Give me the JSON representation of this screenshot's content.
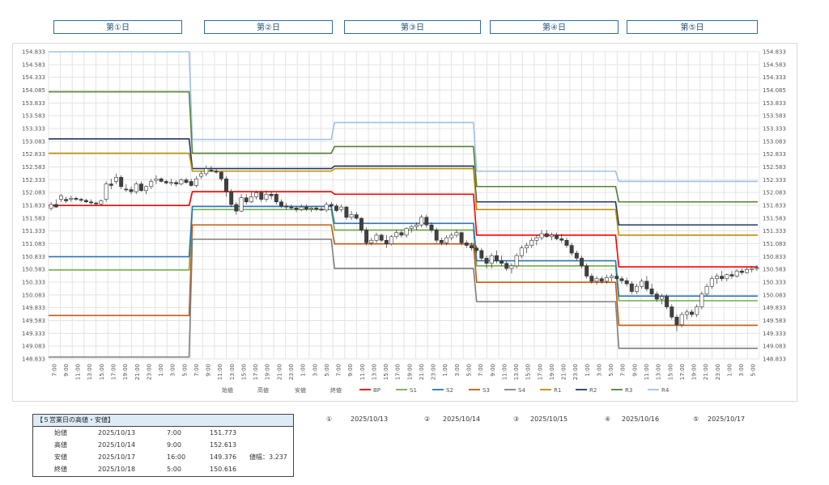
{
  "days": [
    "第①日",
    "第②日",
    "第③日",
    "第④日",
    "第⑤日"
  ],
  "summary": {
    "title": "【５営業日の高値・安値】",
    "rows": [
      {
        "label": "始値",
        "date": "2025/10/13",
        "time": "7:00",
        "price": "151.773",
        "note": ""
      },
      {
        "label": "高値",
        "date": "2025/10/14",
        "time": "9:00",
        "price": "152.613",
        "note": ""
      },
      {
        "label": "安値",
        "date": "2025/10/17",
        "time": "16:00",
        "price": "149.376",
        "note": "値幅：3.237"
      },
      {
        "label": "終値",
        "date": "2025/10/18",
        "time": "5:00",
        "price": "150.616",
        "note": ""
      }
    ]
  },
  "dates": [
    {
      "num": "①",
      "date": "2025/10/13"
    },
    {
      "num": "②",
      "date": "2025/10/14"
    },
    {
      "num": "③",
      "date": "2025/10/15"
    },
    {
      "num": "④",
      "date": "2025/10/16"
    },
    {
      "num": "⑤",
      "date": "2025/10/17"
    }
  ],
  "chart_data": {
    "type": "candlestick",
    "ylim": [
      148.833,
      154.833
    ],
    "y_ticks": [
      "154.833",
      "154.583",
      "154.333",
      "154.085",
      "153.833",
      "153.583",
      "153.333",
      "153.083",
      "152.833",
      "152.583",
      "152.333",
      "152.083",
      "151.833",
      "151.583",
      "151.333",
      "151.083",
      "150.833",
      "150.583",
      "150.333",
      "150.083",
      "149.833",
      "149.583",
      "149.333",
      "149.083",
      "148.833"
    ],
    "x_labels": [
      "7:00",
      "9:00",
      "11:00",
      "13:00",
      "15:00",
      "17:00",
      "19:00",
      "21:00",
      "23:00",
      "1:00",
      "3:00",
      "5:00",
      "7:00",
      "9:00",
      "11:00",
      "13:00",
      "15:00",
      "17:00",
      "19:00",
      "21:00",
      "23:00",
      "1:00",
      "3:00",
      "5:00",
      "7:00",
      "9:00",
      "11:00",
      "13:00",
      "15:00",
      "17:00",
      "19:00",
      "21:00",
      "23:00",
      "1:00",
      "3:00",
      "5:00",
      "7:00",
      "9:00",
      "11:00",
      "13:00",
      "15:00",
      "17:00",
      "19:00",
      "21:00",
      "23:00",
      "1:00",
      "3:00",
      "5:00",
      "7:00",
      "9:00",
      "11:00",
      "13:00",
      "15:00",
      "17:00",
      "19:00",
      "21:00",
      "23:00",
      "1:00",
      "3:00",
      "5:00"
    ],
    "legend": [
      {
        "name": "始値",
        "color": "",
        "line": false
      },
      {
        "name": "高値",
        "color": "",
        "line": false
      },
      {
        "name": "安値",
        "color": "",
        "line": false
      },
      {
        "name": "終値",
        "color": "",
        "line": false
      },
      {
        "name": "BP",
        "color": "#ff0000",
        "line": true
      },
      {
        "name": "S1",
        "color": "#70ad47",
        "line": true
      },
      {
        "name": "S2",
        "color": "#2e75b6",
        "line": true
      },
      {
        "name": "S3",
        "color": "#c55a11",
        "line": true
      },
      {
        "name": "S4",
        "color": "#7f7f7f",
        "line": true
      },
      {
        "name": "R1",
        "color": "#bf8f00",
        "line": true
      },
      {
        "name": "R2",
        "color": "#203864",
        "line": true
      },
      {
        "name": "R3",
        "color": "#548235",
        "line": true
      },
      {
        "name": "R4",
        "color": "#9dc3e6",
        "line": true
      }
    ],
    "pivot_levels": [
      {
        "name": "R4",
        "color": "#9dc3e6",
        "values": [
          154.833,
          153.12,
          153.45,
          152.5,
          152.3
        ]
      },
      {
        "name": "R3",
        "color": "#548235",
        "values": [
          154.05,
          152.85,
          152.98,
          152.2,
          151.9
        ]
      },
      {
        "name": "R2",
        "color": "#203864",
        "values": [
          153.13,
          152.55,
          152.6,
          151.9,
          151.45
        ]
      },
      {
        "name": "R1",
        "color": "#bf8f00",
        "values": [
          152.85,
          152.5,
          152.55,
          151.75,
          151.25
        ]
      },
      {
        "name": "BP",
        "color": "#ff0000",
        "values": [
          151.83,
          152.1,
          152.05,
          151.25,
          150.63
        ]
      },
      {
        "name": "S1",
        "color": "#70ad47",
        "values": [
          150.57,
          151.75,
          151.35,
          150.65,
          149.97
        ]
      },
      {
        "name": "S2",
        "color": "#2e75b6",
        "values": [
          150.83,
          151.81,
          151.48,
          150.75,
          150.06
        ]
      },
      {
        "name": "S3",
        "color": "#c55a11",
        "values": [
          149.68,
          151.45,
          151.08,
          150.33,
          149.49
        ]
      },
      {
        "name": "S4",
        "color": "#7f7f7f",
        "values": [
          148.87,
          151.17,
          150.6,
          149.95,
          149.04
        ]
      }
    ],
    "candles": [
      [
        151.773,
        151.9,
        151.73,
        151.85
      ],
      [
        151.85,
        151.95,
        151.78,
        151.8
      ],
      [
        151.95,
        152.05,
        151.9,
        152.02
      ],
      [
        151.95,
        152.0,
        151.88,
        151.92
      ],
      [
        151.95,
        152.02,
        151.9,
        151.97
      ],
      [
        151.97,
        152.0,
        151.92,
        151.95
      ],
      [
        151.95,
        151.98,
        151.9,
        151.93
      ],
      [
        151.93,
        151.96,
        151.88,
        151.9
      ],
      [
        151.9,
        151.95,
        151.85,
        151.88
      ],
      [
        151.88,
        151.9,
        151.82,
        151.86
      ],
      [
        151.86,
        151.95,
        151.84,
        151.92
      ],
      [
        151.95,
        152.3,
        151.9,
        152.25
      ],
      [
        152.25,
        152.35,
        152.15,
        152.22
      ],
      [
        152.3,
        152.45,
        152.25,
        152.38
      ],
      [
        152.38,
        152.42,
        152.15,
        152.2
      ],
      [
        152.15,
        152.25,
        152.1,
        152.14
      ],
      [
        152.14,
        152.2,
        152.05,
        152.1
      ],
      [
        152.1,
        152.3,
        152.05,
        152.25
      ],
      [
        152.25,
        152.3,
        152.1,
        152.12
      ],
      [
        152.12,
        152.22,
        152.05,
        152.2
      ],
      [
        152.2,
        152.35,
        152.15,
        152.3
      ],
      [
        152.32,
        152.42,
        152.25,
        152.35
      ],
      [
        152.35,
        152.38,
        152.28,
        152.3
      ],
      [
        152.3,
        152.33,
        152.24,
        152.27
      ],
      [
        152.27,
        152.35,
        152.22,
        152.28
      ],
      [
        152.28,
        152.32,
        152.2,
        152.25
      ],
      [
        152.25,
        152.36,
        152.22,
        152.33
      ],
      [
        152.33,
        152.37,
        152.25,
        152.28
      ],
      [
        152.3,
        152.35,
        152.2,
        152.22
      ],
      [
        152.22,
        152.4,
        152.18,
        152.35
      ],
      [
        152.4,
        152.5,
        152.35,
        152.45
      ],
      [
        152.45,
        152.613,
        152.4,
        152.55
      ],
      [
        152.52,
        152.6,
        152.48,
        152.5
      ],
      [
        152.5,
        152.55,
        152.45,
        152.48
      ],
      [
        152.48,
        152.5,
        152.3,
        152.35
      ],
      [
        152.35,
        152.4,
        152.0,
        152.1
      ],
      [
        152.1,
        152.15,
        151.8,
        151.85
      ],
      [
        151.85,
        151.9,
        151.65,
        151.72
      ],
      [
        151.72,
        152.05,
        151.7,
        151.98
      ],
      [
        151.98,
        152.05,
        151.85,
        151.9
      ],
      [
        151.9,
        152.1,
        151.88,
        152.0
      ],
      [
        152.0,
        152.12,
        151.95,
        152.08
      ],
      [
        152.08,
        152.12,
        151.9,
        151.95
      ],
      [
        151.95,
        152.12,
        151.9,
        152.05
      ],
      [
        152.05,
        152.1,
        151.95,
        152.02
      ],
      [
        152.05,
        152.08,
        151.85,
        151.9
      ],
      [
        151.9,
        151.95,
        151.78,
        151.82
      ],
      [
        151.82,
        151.88,
        151.75,
        151.8
      ],
      [
        151.8,
        151.85,
        151.74,
        151.78
      ],
      [
        151.78,
        151.82,
        151.7,
        151.75
      ],
      [
        151.75,
        151.85,
        151.72,
        151.8
      ],
      [
        151.8,
        151.85,
        151.72,
        151.76
      ],
      [
        151.76,
        151.8,
        151.7,
        151.78
      ],
      [
        151.78,
        151.82,
        151.72,
        151.76
      ],
      [
        151.76,
        151.8,
        151.72,
        151.74
      ],
      [
        151.74,
        151.9,
        151.7,
        151.85
      ],
      [
        151.85,
        151.9,
        151.78,
        151.82
      ],
      [
        151.82,
        151.86,
        151.7,
        151.73
      ],
      [
        151.75,
        151.85,
        151.7,
        151.8
      ],
      [
        151.8,
        151.82,
        151.55,
        151.6
      ],
      [
        151.6,
        151.72,
        151.55,
        151.65
      ],
      [
        151.65,
        151.7,
        151.55,
        151.58
      ],
      [
        151.58,
        151.6,
        151.3,
        151.35
      ],
      [
        151.35,
        151.4,
        151.05,
        151.1
      ],
      [
        151.1,
        151.2,
        151.05,
        151.15
      ],
      [
        151.15,
        151.3,
        151.1,
        151.25
      ],
      [
        151.25,
        151.28,
        151.12,
        151.15
      ],
      [
        151.15,
        151.25,
        151.0,
        151.08
      ],
      [
        151.08,
        151.25,
        151.05,
        151.22
      ],
      [
        151.22,
        151.35,
        151.18,
        151.3
      ],
      [
        151.3,
        151.35,
        151.2,
        151.25
      ],
      [
        151.25,
        151.4,
        151.2,
        151.38
      ],
      [
        151.38,
        151.45,
        151.3,
        151.42
      ],
      [
        151.42,
        151.5,
        151.35,
        151.45
      ],
      [
        151.45,
        151.65,
        151.4,
        151.6
      ],
      [
        151.6,
        151.65,
        151.4,
        151.45
      ],
      [
        151.45,
        151.5,
        151.3,
        151.35
      ],
      [
        151.35,
        151.4,
        151.1,
        151.15
      ],
      [
        151.15,
        151.2,
        151.05,
        151.1
      ],
      [
        151.1,
        151.25,
        151.05,
        151.2
      ],
      [
        151.2,
        151.3,
        151.15,
        151.25
      ],
      [
        151.25,
        151.35,
        151.2,
        151.3
      ],
      [
        151.3,
        151.32,
        151.05,
        151.1
      ],
      [
        151.1,
        151.15,
        151.0,
        151.05
      ],
      [
        151.05,
        151.1,
        150.95,
        151.0
      ],
      [
        151.0,
        151.05,
        150.9,
        150.95
      ],
      [
        150.95,
        151.0,
        150.75,
        150.8
      ],
      [
        150.8,
        150.85,
        150.6,
        150.7
      ],
      [
        150.7,
        150.9,
        150.6,
        150.85
      ],
      [
        150.85,
        150.95,
        150.7,
        150.75
      ],
      [
        150.75,
        150.85,
        150.65,
        150.7
      ],
      [
        150.7,
        150.75,
        150.55,
        150.6
      ],
      [
        150.6,
        150.7,
        150.5,
        150.65
      ],
      [
        150.65,
        150.9,
        150.6,
        150.85
      ],
      [
        150.85,
        151.05,
        150.8,
        151.0
      ],
      [
        151.0,
        151.1,
        150.9,
        151.05
      ],
      [
        151.05,
        151.2,
        151.0,
        151.15
      ],
      [
        151.15,
        151.25,
        151.05,
        151.2
      ],
      [
        151.2,
        151.35,
        151.15,
        151.28
      ],
      [
        151.28,
        151.35,
        151.2,
        151.22
      ],
      [
        151.22,
        151.3,
        151.15,
        151.25
      ],
      [
        151.25,
        151.3,
        151.15,
        151.18
      ],
      [
        151.18,
        151.28,
        151.1,
        151.15
      ],
      [
        151.15,
        151.2,
        151.0,
        151.05
      ],
      [
        151.05,
        151.1,
        150.85,
        150.9
      ],
      [
        150.9,
        150.95,
        150.75,
        150.8
      ],
      [
        150.8,
        150.85,
        150.6,
        150.65
      ],
      [
        150.65,
        150.7,
        150.4,
        150.45
      ],
      [
        150.45,
        150.5,
        150.3,
        150.35
      ],
      [
        150.35,
        150.45,
        150.28,
        150.4
      ],
      [
        150.4,
        150.45,
        150.3,
        150.35
      ],
      [
        150.35,
        150.48,
        150.3,
        150.42
      ],
      [
        150.42,
        150.5,
        150.35,
        150.45
      ],
      [
        150.45,
        150.5,
        150.38,
        150.4
      ],
      [
        150.4,
        150.45,
        150.3,
        150.36
      ],
      [
        150.36,
        150.42,
        150.25,
        150.3
      ],
      [
        150.3,
        150.35,
        150.1,
        150.15
      ],
      [
        150.15,
        150.3,
        150.1,
        150.25
      ],
      [
        150.25,
        150.4,
        150.2,
        150.35
      ],
      [
        150.35,
        150.45,
        150.15,
        150.2
      ],
      [
        150.2,
        150.3,
        150.05,
        150.1
      ],
      [
        150.1,
        150.15,
        149.95,
        150.0
      ],
      [
        150.0,
        150.1,
        149.9,
        150.05
      ],
      [
        150.05,
        150.1,
        149.8,
        149.85
      ],
      [
        149.85,
        149.9,
        149.6,
        149.65
      ],
      [
        149.65,
        149.7,
        149.376,
        149.5
      ],
      [
        149.5,
        149.75,
        149.45,
        149.7
      ],
      [
        149.7,
        149.8,
        149.6,
        149.75
      ],
      [
        149.75,
        149.8,
        149.65,
        149.7
      ],
      [
        149.7,
        149.9,
        149.65,
        149.85
      ],
      [
        149.85,
        150.15,
        149.8,
        150.1
      ],
      [
        150.1,
        150.3,
        150.05,
        150.25
      ],
      [
        150.25,
        150.45,
        150.2,
        150.4
      ],
      [
        150.4,
        150.5,
        150.3,
        150.45
      ],
      [
        150.45,
        150.55,
        150.35,
        150.4
      ],
      [
        150.4,
        150.5,
        150.35,
        150.48
      ],
      [
        150.48,
        150.55,
        150.4,
        150.45
      ],
      [
        150.45,
        150.58,
        150.42,
        150.55
      ],
      [
        150.55,
        150.6,
        150.48,
        150.52
      ],
      [
        150.52,
        150.62,
        150.5,
        150.58
      ],
      [
        150.58,
        150.65,
        150.52,
        150.6
      ],
      [
        150.6,
        150.66,
        150.55,
        150.616
      ]
    ]
  }
}
